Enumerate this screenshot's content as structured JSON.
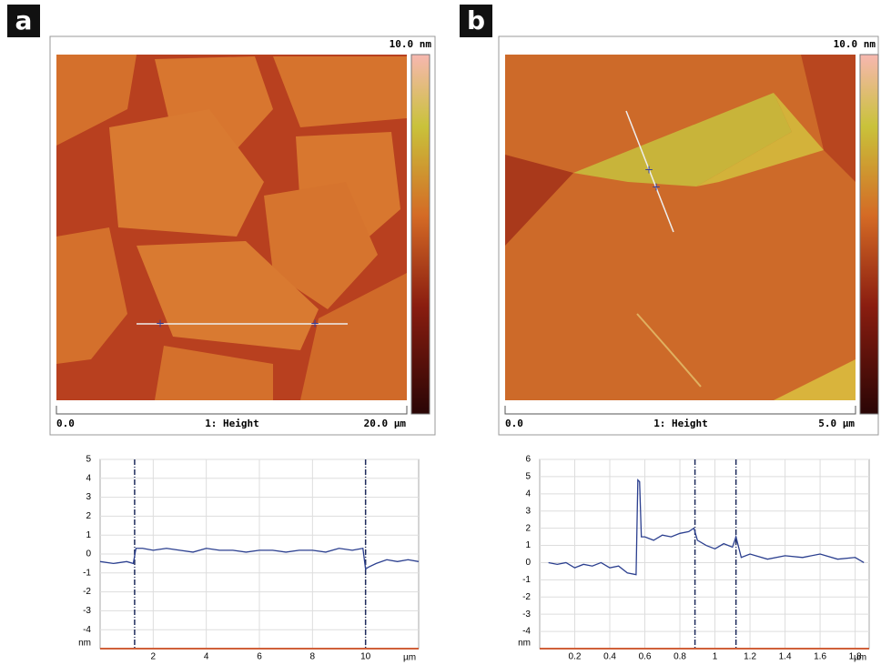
{
  "panels": [
    {
      "label": "a",
      "scale_max": "10.0 nm",
      "axis_start": "0.0",
      "axis_title": "1: Height",
      "axis_end": "20.0 µm"
    },
    {
      "label": "b",
      "scale_max": "10.0 nm",
      "axis_start": "0.0",
      "axis_title": "1: Height",
      "axis_end": "5.0 µm"
    }
  ],
  "chart_data": [
    {
      "type": "line",
      "color": "#2b3f8f",
      "x": [
        0,
        0.5,
        1,
        1.25,
        1.35,
        1.6,
        2,
        2.5,
        3,
        3.5,
        4,
        4.5,
        5,
        5.5,
        6,
        6.5,
        7,
        7.5,
        8,
        8.5,
        9,
        9.5,
        9.9,
        10.0,
        10.1,
        10.4,
        10.8,
        11.2,
        11.6,
        12
      ],
      "values": [
        -0.4,
        -0.5,
        -0.4,
        -0.5,
        0.3,
        0.3,
        0.2,
        0.3,
        0.2,
        0.1,
        0.3,
        0.2,
        0.2,
        0.1,
        0.2,
        0.2,
        0.1,
        0.2,
        0.2,
        0.1,
        0.3,
        0.2,
        0.3,
        -0.8,
        -0.7,
        -0.5,
        -0.3,
        -0.4,
        -0.3,
        -0.4
      ],
      "xlim": [
        0,
        12
      ],
      "xticks": [
        2,
        4,
        6,
        8,
        10
      ],
      "ylim": [
        -5,
        5
      ],
      "yticks": [
        5,
        4,
        3,
        2,
        1,
        0,
        -1,
        -2,
        -3,
        -4
      ],
      "x_unit": "µm",
      "y_unit": "nm",
      "cursors": [
        1.3,
        10
      ],
      "grid": true
    },
    {
      "type": "line",
      "color": "#2b3f8f",
      "x": [
        0.05,
        0.1,
        0.15,
        0.2,
        0.25,
        0.3,
        0.35,
        0.4,
        0.45,
        0.5,
        0.55,
        0.56,
        0.57,
        0.58,
        0.6,
        0.65,
        0.7,
        0.75,
        0.8,
        0.85,
        0.88,
        0.9,
        0.95,
        1.0,
        1.05,
        1.1,
        1.12,
        1.15,
        1.2,
        1.3,
        1.4,
        1.5,
        1.6,
        1.7,
        1.8,
        1.85
      ],
      "values": [
        0,
        -0.1,
        0,
        -0.3,
        -0.1,
        -0.2,
        0,
        -0.3,
        -0.2,
        -0.6,
        -0.7,
        4.8,
        4.7,
        1.5,
        1.5,
        1.3,
        1.6,
        1.5,
        1.7,
        1.8,
        2.0,
        1.3,
        1.0,
        0.8,
        1.1,
        0.9,
        1.5,
        0.3,
        0.5,
        0.2,
        0.4,
        0.3,
        0.5,
        0.2,
        0.3,
        0
      ],
      "xlim": [
        0,
        1.88
      ],
      "xticks": [
        0.2,
        0.4,
        0.6,
        0.8,
        1,
        1.2,
        1.4,
        1.6,
        1.8
      ],
      "ylim": [
        -5,
        6
      ],
      "yticks": [
        6,
        5,
        4,
        3,
        2,
        1,
        0,
        -1,
        -2,
        -3,
        -4
      ],
      "x_unit": "µm",
      "y_unit": "nm",
      "cursors": [
        0.886,
        1.12
      ],
      "grid": true
    }
  ]
}
